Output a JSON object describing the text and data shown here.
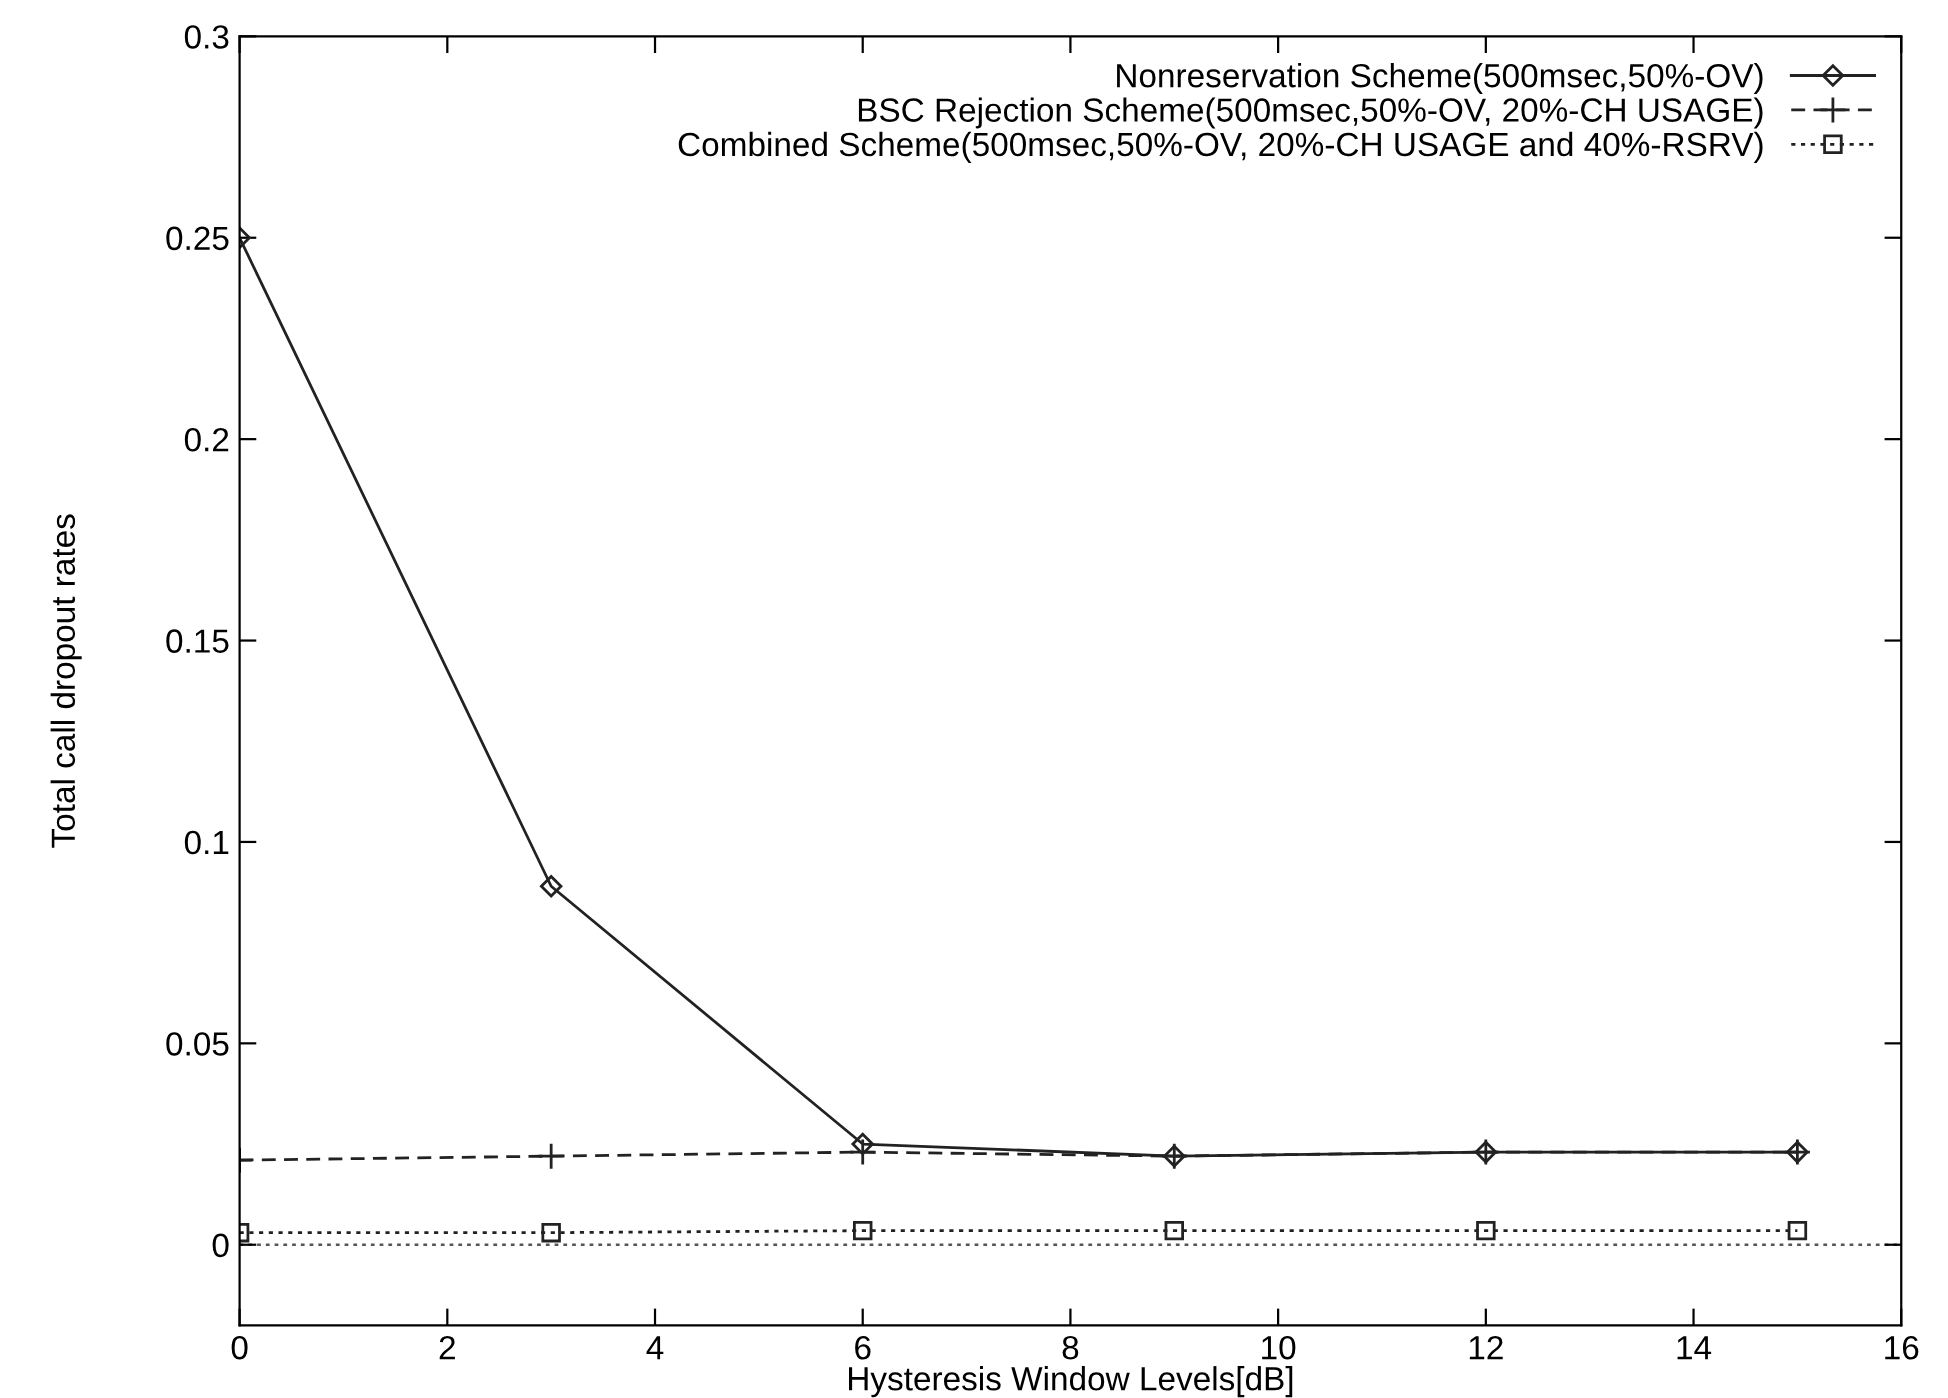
{
  "chart_data": {
    "type": "line",
    "xlabel": "Hysteresis Window Levels[dB]",
    "ylabel": "Total call dropout rates",
    "x": [
      0,
      3,
      6,
      9,
      12,
      15
    ],
    "series": [
      {
        "name": "Nonreservation Scheme(500msec,50%-OV)",
        "color": "#222222",
        "marker": "diamond",
        "line_style": "solid",
        "values": [
          0.25,
          0.089,
          0.025,
          0.022,
          0.023,
          0.023
        ]
      },
      {
        "name": "BSC Rejection Scheme(500msec,50%-OV, 20%-CH USAGE)",
        "color": "#222222",
        "marker": "cross",
        "line_style": "dashed",
        "values": [
          0.021,
          0.022,
          0.023,
          0.022,
          0.023,
          0.023
        ]
      },
      {
        "name": "Combined Scheme(500msec,50%-OV, 20%-CH USAGE and 40%-RSRV)",
        "color": "#222222",
        "marker": "square",
        "line_style": "dotted",
        "values": [
          0.003,
          0.003,
          0.0035,
          0.0035,
          0.0035,
          0.0035
        ]
      }
    ],
    "xlim": [
      0,
      16
    ],
    "xticks": [
      0,
      2,
      4,
      6,
      8,
      10,
      12,
      14,
      16
    ],
    "ylim": [
      -0.02,
      0.3
    ],
    "yticks": [
      0,
      0.05,
      0.1,
      0.15,
      0.2,
      0.25,
      0.3
    ],
    "ref_lines": [
      {
        "axis": "y",
        "value": 0,
        "color": "#555555",
        "line_style": "dotted"
      }
    ],
    "grid": false,
    "legend": "top right"
  }
}
